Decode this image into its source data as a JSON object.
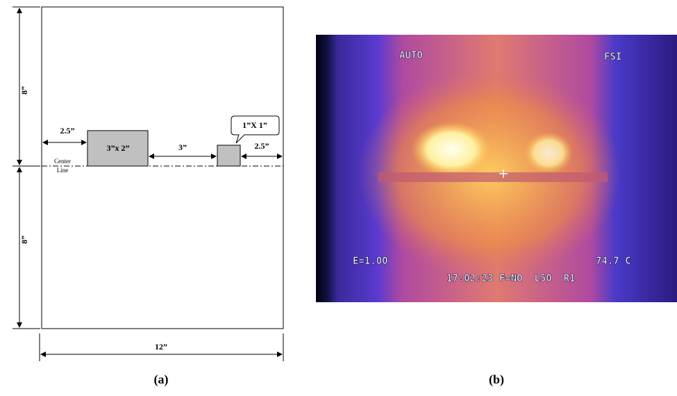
{
  "panel_a": {
    "height_top": "8”",
    "height_bottom": "8”",
    "width": "12”",
    "left_gap": "2.5”",
    "large_box": "3”x 2”",
    "middle_gap": "3”",
    "small_box": "1”X 1”",
    "right_gap": "2.5”",
    "center_line": [
      "Center",
      "Line"
    ],
    "caption": "(a)"
  },
  "panel_b": {
    "mode": "AUTO",
    "brand": "FSI",
    "emissivity": "E=1.00",
    "temperature": "74.7 C",
    "status": "17:02:23 F=NO  L50  R1",
    "caption": "(b)"
  }
}
